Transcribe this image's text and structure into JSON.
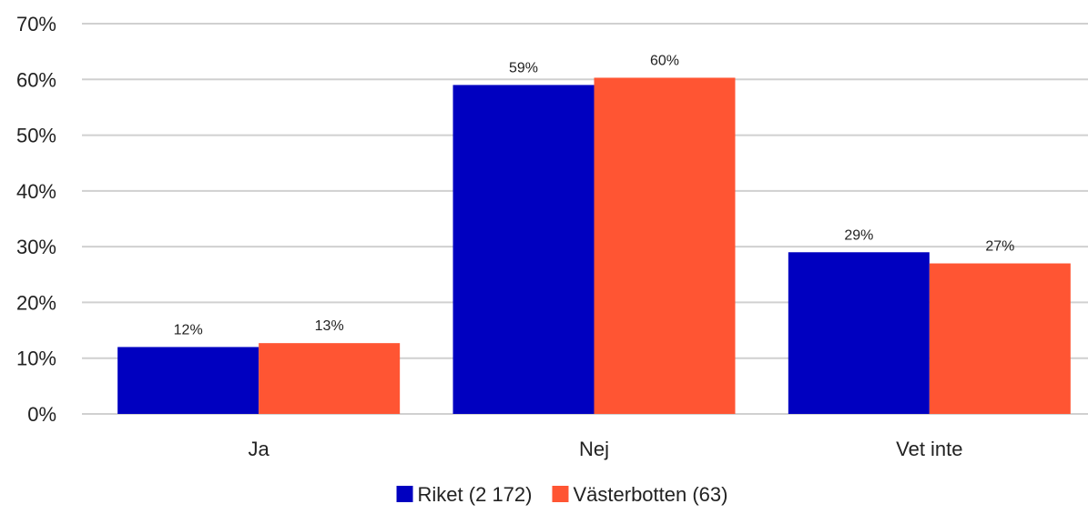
{
  "chart_data": {
    "type": "bar",
    "categories": [
      "Ja",
      "Nej",
      "Vet inte"
    ],
    "series": [
      {
        "name": "Riket (2 172)",
        "values": [
          12,
          59,
          29
        ],
        "labels": [
          "12%",
          "59%",
          "29%"
        ],
        "color": "#0000C0"
      },
      {
        "name": "Västerbotten (63)",
        "values": [
          12.7,
          60.3,
          27
        ],
        "labels": [
          "13%",
          "60%",
          "27%"
        ],
        "color": "#FF5533"
      }
    ],
    "title": "",
    "xlabel": "",
    "ylabel": "",
    "ylim": [
      0,
      70
    ],
    "yticks": [
      0,
      10,
      20,
      30,
      40,
      50,
      60,
      70
    ],
    "ytick_labels": [
      "0%",
      "10%",
      "20%",
      "30%",
      "40%",
      "50%",
      "60%",
      "70%"
    ],
    "grid": true,
    "gridline_color": "#D0D0D0",
    "legend_position": "bottom"
  }
}
